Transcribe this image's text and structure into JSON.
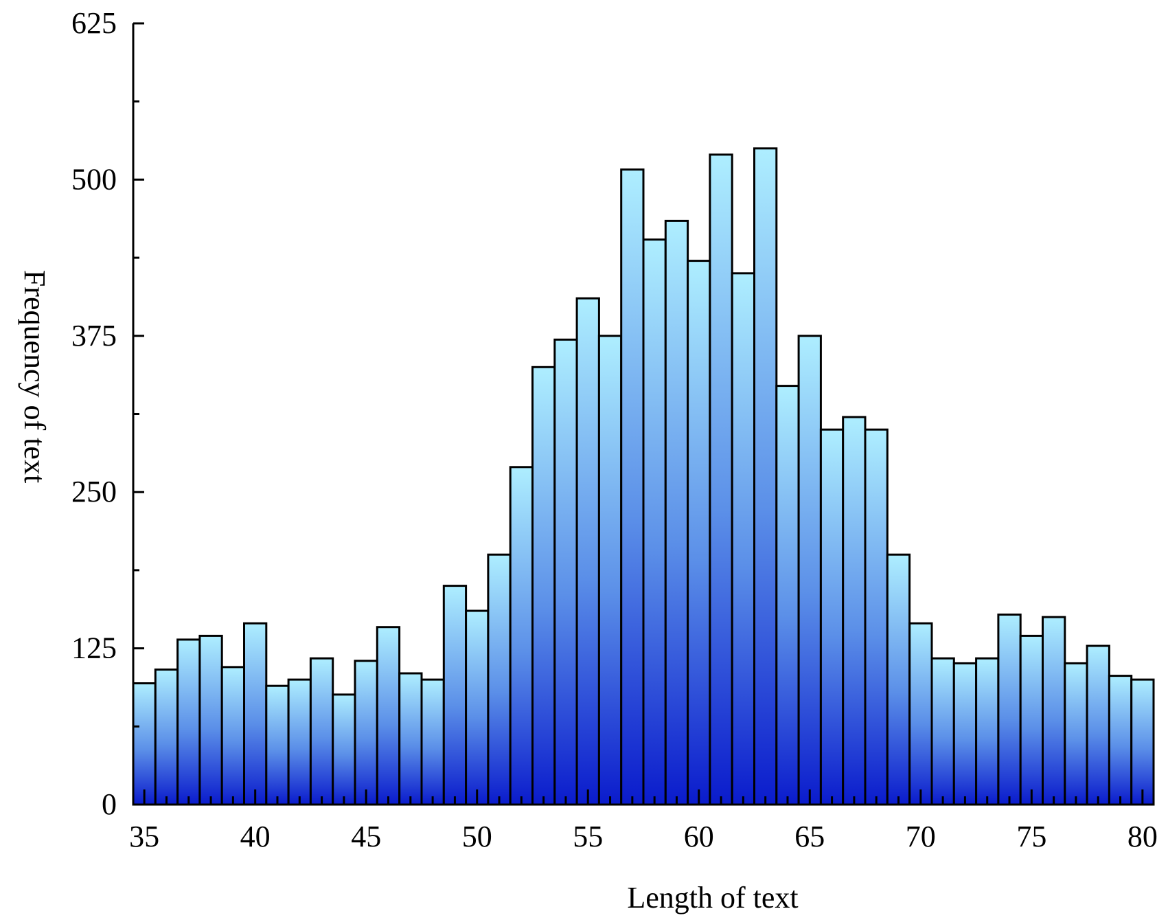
{
  "chart_data": {
    "type": "bar",
    "xlabel": "Length of text",
    "ylabel": "Frequency of text",
    "ylim": [
      0,
      625
    ],
    "xlim": [
      34.5,
      80.5
    ],
    "y_ticks_labeled": [
      0,
      125,
      250,
      375,
      500,
      625
    ],
    "y_minor_step": 62.5,
    "x_ticks_labeled": [
      35,
      40,
      45,
      50,
      55,
      60,
      65,
      70,
      75,
      80
    ],
    "x_minor_step": 1,
    "grid": false,
    "legend": "none",
    "bar_fill_top": "#aeeeff",
    "bar_fill_bottom": "#0a1bcc",
    "bar_stroke": "#000000",
    "x": [
      35,
      36,
      37,
      38,
      39,
      40,
      41,
      42,
      43,
      44,
      45,
      46,
      47,
      48,
      49,
      50,
      51,
      52,
      53,
      54,
      55,
      56,
      57,
      58,
      59,
      60,
      61,
      62,
      63,
      64,
      65,
      66,
      67,
      68,
      69,
      70,
      71,
      72,
      73,
      74,
      75,
      76,
      77,
      78,
      79,
      80
    ],
    "values": [
      97,
      108,
      132,
      135,
      110,
      145,
      95,
      100,
      117,
      88,
      115,
      142,
      105,
      100,
      175,
      155,
      200,
      270,
      350,
      372,
      405,
      375,
      508,
      452,
      467,
      435,
      520,
      425,
      525,
      335,
      375,
      300,
      310,
      300,
      200,
      145,
      117,
      113,
      117,
      152,
      135,
      150,
      113,
      127,
      103,
      100
    ]
  }
}
